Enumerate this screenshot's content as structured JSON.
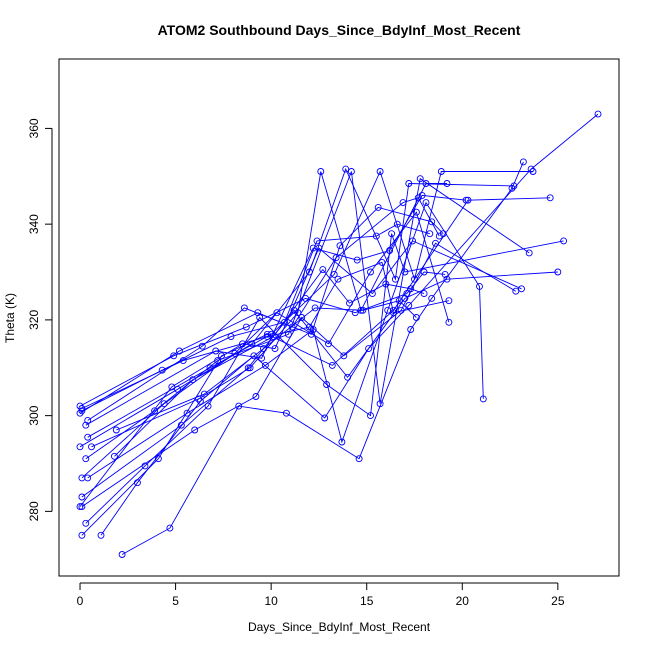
{
  "chart_data": {
    "type": "line",
    "title": "ATOM2 Southbound Days_Since_BdyInf_Most_Recent",
    "xlabel": "Days_Since_BdyInf_Most_Recent",
    "ylabel": "Theta (K)",
    "xlim": [
      -1.1,
      28.2
    ],
    "ylim": [
      266.5,
      374.5
    ],
    "x_ticks": [
      0,
      5,
      10,
      15,
      20,
      25
    ],
    "y_ticks": [
      280,
      300,
      320,
      340,
      360
    ],
    "grid": false,
    "legend": "none",
    "color": "#0000ff",
    "markers": "open-circle",
    "series": [
      {
        "x": [
          2.2,
          4.7,
          8.3,
          10.8,
          14.6,
          17.3,
          18.4,
          22.6,
          23.2
        ],
        "y": [
          271,
          276.5,
          302,
          300.5,
          291,
          318,
          324.5,
          347.5,
          353
        ]
      },
      {
        "x": [
          1.1,
          3.0,
          6.3,
          9.1,
          12.8,
          15.1,
          17.2,
          23.6,
          27.1
        ],
        "y": [
          275,
          286,
          303,
          312.5,
          299.5,
          314,
          323,
          351.5,
          363
        ]
      },
      {
        "x": [
          0.1,
          4.1,
          7.4,
          9.8,
          13.2,
          16.4,
          20.3,
          24.6
        ],
        "y": [
          275,
          291,
          312.5,
          317,
          310.5,
          322,
          345,
          345.5
        ]
      },
      {
        "x": [
          0.3,
          3.4,
          6.7,
          9.4,
          12.9,
          15.2,
          16.3,
          17.0,
          25.3
        ],
        "y": [
          277.5,
          289.5,
          302,
          320.5,
          306.5,
          300,
          338,
          330,
          336.5
        ]
      },
      {
        "x": [
          0.1,
          5.3,
          8.8,
          11.2,
          14.0,
          17.0,
          19.2,
          25.0
        ],
        "y": [
          283,
          298,
          310,
          322,
          308,
          324.5,
          328.5,
          330
        ]
      },
      {
        "x": [
          0.1,
          6.0,
          9.2,
          11.6,
          13.8,
          16.8,
          18.6,
          22.8
        ],
        "y": [
          281,
          297,
          304,
          320.5,
          312.5,
          322,
          336,
          326
        ]
      },
      {
        "x": [
          0.0,
          4.8,
          8.5,
          10.2,
          12.5,
          15.3,
          17.4,
          23.1
        ],
        "y": [
          281,
          306,
          315,
          314,
          335,
          325.5,
          336.5,
          326.5
        ]
      },
      {
        "x": [
          0.4,
          5.6,
          9.7,
          12.2,
          13.7,
          16.1,
          18.1,
          20.9,
          21.1
        ],
        "y": [
          287,
          300.5,
          310.5,
          318,
          294.5,
          322,
          344.5,
          327,
          303.5
        ]
      },
      {
        "x": [
          0.1,
          4.4,
          8.1,
          10.3,
          13.0,
          15.2,
          17.6,
          19.3
        ],
        "y": [
          287,
          302.5,
          313,
          321.5,
          315,
          330,
          342.5,
          319.5
        ]
      },
      {
        "x": [
          0.3,
          3.9,
          7.2,
          10.9,
          14.2,
          15.7,
          17.8,
          23.5
        ],
        "y": [
          291,
          301,
          311.5,
          317,
          351,
          302.5,
          349.5,
          334
        ]
      },
      {
        "x": [
          0.6,
          6.2,
          8.9,
          11.4,
          12.6,
          14.7,
          18.1,
          19.2
        ],
        "y": [
          293.5,
          303.5,
          310,
          321.5,
          351,
          322,
          348.5,
          348.5
        ]
      },
      {
        "x": [
          0.0,
          5.1,
          9.0,
          12.0,
          13.9,
          16.5,
          17.2,
          22.7
        ],
        "y": [
          293.5,
          305.5,
          315,
          330,
          351.5,
          328.5,
          348.5,
          348
        ]
      },
      {
        "x": [
          0.4,
          6.8,
          10.0,
          13.3,
          15.7,
          17.5,
          18.9,
          23.7
        ],
        "y": [
          295.5,
          310,
          317,
          329.5,
          351,
          328.5,
          351,
          351
        ]
      },
      {
        "x": [
          0.3,
          7.1,
          9.5,
          12.2,
          14.5,
          16.2,
          17.9,
          20.2
        ],
        "y": [
          298,
          313.5,
          312,
          335,
          332.5,
          334.5,
          346,
          345
        ]
      },
      {
        "x": [
          0.4,
          6.4,
          8.6,
          12.1,
          13.6,
          15.6,
          18.4,
          19.0
        ],
        "y": [
          299,
          314.5,
          322.5,
          317,
          335.5,
          343.5,
          340.5,
          338
        ]
      },
      {
        "x": [
          0.0,
          5.2,
          9.3,
          11.1,
          13.4,
          16.9,
          17.7,
          18.8
        ],
        "y": [
          300.5,
          313.5,
          321.5,
          318.5,
          333,
          344.5,
          345.5,
          337.5
        ]
      },
      {
        "x": [
          0.1,
          4.3,
          7.9,
          10.7,
          12.4,
          15.5,
          16.6,
          18.3
        ],
        "y": [
          301,
          309.5,
          316.5,
          319.5,
          336.5,
          337.5,
          340,
          338
        ]
      },
      {
        "x": [
          0.1,
          5.4,
          9.8,
          12.0,
          13.5,
          15.8,
          16.4,
          19.3
        ],
        "y": [
          301.5,
          311.5,
          316.5,
          318.5,
          328.5,
          332,
          321.5,
          324
        ]
      },
      {
        "x": [
          0.0,
          4.9,
          8.7,
          11.8,
          14.4,
          17.1,
          18.0,
          19.1
        ],
        "y": [
          302,
          312.5,
          318.5,
          324.5,
          321.5,
          325.5,
          330,
          329.5
        ]
      },
      {
        "x": [
          1.8,
          5.9,
          10.1,
          12.7,
          14.1,
          16.0,
          17.3,
          18.0
        ],
        "y": [
          291.5,
          307.5,
          316.5,
          330.5,
          323.5,
          327.5,
          326.5,
          325.5
        ]
      },
      {
        "x": [
          1.9,
          6.5,
          9.6,
          12.3,
          14.8,
          16.7,
          17.6
        ],
        "y": [
          297,
          304.5,
          314,
          322.5,
          322,
          324,
          320.5
        ]
      }
    ]
  }
}
